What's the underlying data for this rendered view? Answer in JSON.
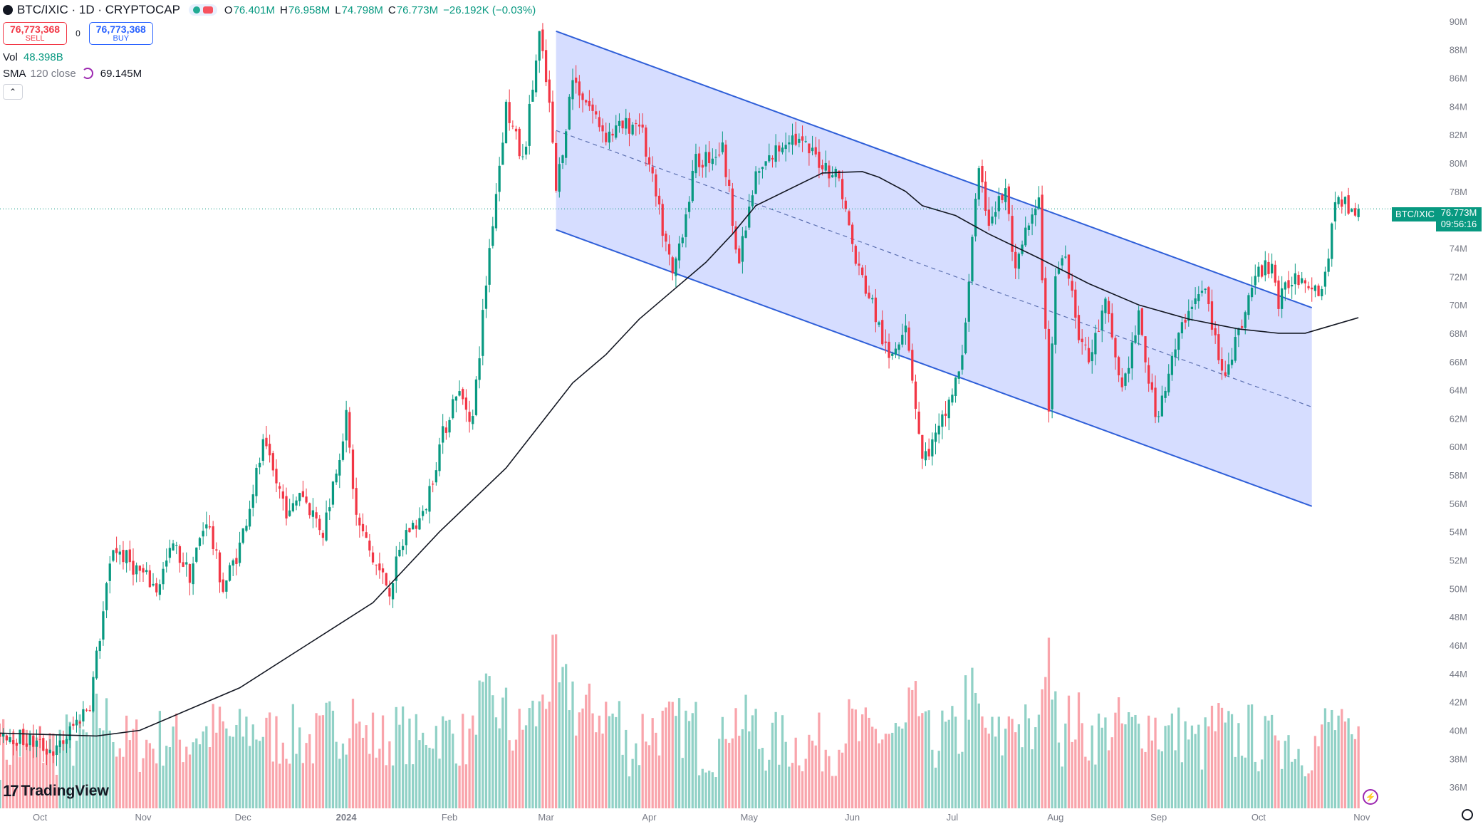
{
  "header": {
    "title": "BTC/IXIC · 1D · CRYPTOCAP",
    "ohlc": [
      {
        "k": "O",
        "v": "76.401M"
      },
      {
        "k": "H",
        "v": "76.958M"
      },
      {
        "k": "L",
        "v": "74.798M"
      },
      {
        "k": "C",
        "v": "76.773M"
      }
    ],
    "change": "−26.192K (−0.03%)",
    "sell_price": "76,773,368",
    "sell_label": "SELL",
    "spread": "0",
    "buy_price": "76,773,368",
    "buy_label": "BUY",
    "vol_label": "Vol",
    "vol_value": "48.398B",
    "sma_label": "SMA",
    "sma_params": "120 close",
    "sma_value": "69.145M"
  },
  "price_tag": {
    "symbol": "BTC/IXIC",
    "price": "76.773M",
    "countdown": "09:56:16"
  },
  "branding": "TradingView",
  "colors": {
    "up": "#089981",
    "down": "#f23645",
    "channel_fill": "#d4dbff",
    "channel_line": "#2f5fd8",
    "sma": "#131722"
  },
  "chart_data": {
    "type": "candlestick",
    "symbol": "BTC/IXIC",
    "interval": "1D",
    "y_axis_labels": [
      "36M",
      "38M",
      "40M",
      "42M",
      "44M",
      "46M",
      "48M",
      "50M",
      "52M",
      "54M",
      "56M",
      "58M",
      "60M",
      "62M",
      "64M",
      "66M",
      "68M",
      "70M",
      "72M",
      "74M",
      "76M",
      "78M",
      "80M",
      "82M",
      "84M",
      "86M",
      "88M",
      "90M"
    ],
    "ylim": [
      34.5,
      91.5
    ],
    "x_axis_labels": [
      "Oct",
      "Nov",
      "Dec",
      "2024",
      "Feb",
      "Mar",
      "Apr",
      "May",
      "Jun",
      "Jul",
      "Aug",
      "Sep",
      "Oct",
      "Nov"
    ],
    "x_axis_positions": [
      0,
      31,
      61,
      92,
      123,
      152,
      183,
      213,
      244,
      274,
      305,
      336,
      366,
      397
    ],
    "day_range": [
      -12,
      418
    ],
    "last_price": 76.773,
    "price_path_days": [
      -12,
      5,
      15,
      22,
      35,
      40,
      45,
      50,
      55,
      60,
      67,
      75,
      78,
      85,
      92,
      95,
      100,
      105,
      110,
      115,
      120,
      125,
      130,
      135,
      140,
      145,
      150,
      153,
      155,
      160,
      170,
      180,
      190,
      197,
      205,
      210,
      215,
      225,
      240,
      245,
      250,
      255,
      260,
      265,
      270,
      277,
      280,
      282,
      285,
      290,
      293,
      296,
      300,
      303,
      305,
      308,
      312,
      315,
      320,
      325,
      330,
      335,
      345,
      350,
      355,
      360,
      365,
      370,
      372,
      376,
      380,
      385,
      390,
      392,
      394,
      396
    ],
    "price_path_values": [
      40,
      38.5,
      42,
      53,
      50,
      53,
      51,
      55,
      50,
      53,
      60,
      55,
      57,
      54,
      62,
      55,
      52,
      50,
      54,
      55,
      60,
      64,
      62,
      74,
      84,
      80,
      89,
      84,
      78,
      86,
      82,
      83,
      72,
      80,
      81,
      73,
      79,
      82,
      79,
      73,
      70,
      66,
      69,
      59,
      61,
      66,
      75,
      79,
      76,
      78,
      72,
      75,
      77,
      63,
      72,
      74,
      68,
      66,
      70,
      64,
      69,
      62,
      70,
      71,
      65,
      68,
      72,
      73,
      70,
      72,
      72,
      71,
      78,
      77,
      77,
      76.77
    ],
    "volume": "red/green bars at bottom of pane",
    "sma": {
      "length": 120,
      "source": "close",
      "last_value": 69.145,
      "days": [
        -12,
        17,
        30,
        60,
        80,
        100,
        120,
        140,
        150,
        160,
        170,
        180,
        190,
        200,
        208,
        215,
        235,
        247,
        252,
        260,
        265,
        275,
        285,
        300,
        315,
        330,
        345,
        360,
        372,
        380,
        396
      ],
      "values": [
        39.8,
        39.6,
        40,
        43,
        46,
        49,
        54,
        58.5,
        61.5,
        64.5,
        66.5,
        69,
        71,
        73,
        75,
        77,
        79.3,
        79.4,
        79,
        78,
        77,
        76.3,
        75,
        73.3,
        71.5,
        70,
        69,
        68.3,
        68,
        68,
        69.1
      ]
    },
    "channel": {
      "start_day": 155,
      "end_day": 382,
      "upper": [
        89.3,
        69.8
      ],
      "lower": [
        75.3,
        55.8
      ],
      "mid": [
        82.3,
        62.8
      ]
    }
  }
}
